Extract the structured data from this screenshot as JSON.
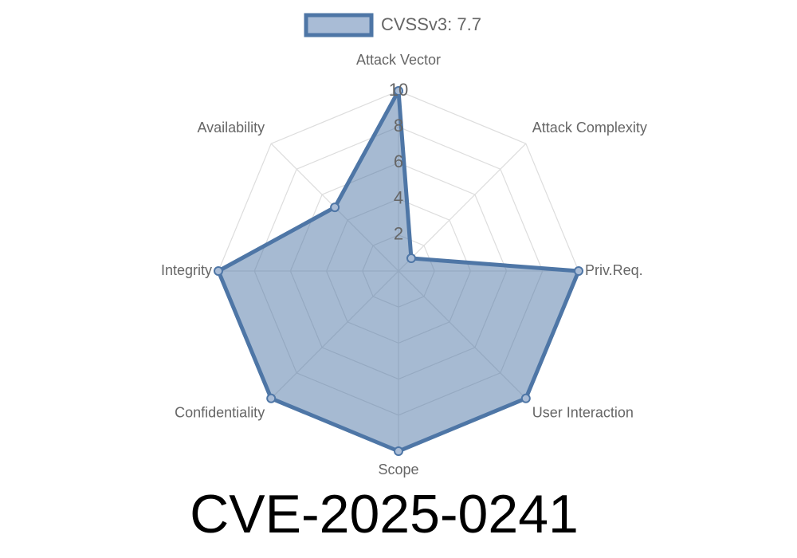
{
  "chart_data": {
    "type": "radar",
    "title": "CVE-2025-0241",
    "categories": [
      "Attack Vector",
      "Attack Complexity",
      "Priv.Req.",
      "User Interaction",
      "Scope",
      "Confidentiality",
      "Integrity",
      "Availability"
    ],
    "series": [
      {
        "name": "CVSSv3: 7.7",
        "color": "#4e76a6",
        "values": [
          10,
          1,
          10,
          10,
          10,
          10,
          10,
          5
        ]
      }
    ],
    "rlim": [
      0,
      10
    ],
    "rticks": [
      2,
      4,
      6,
      8,
      10
    ],
    "grid": true,
    "legend": "top"
  }
}
